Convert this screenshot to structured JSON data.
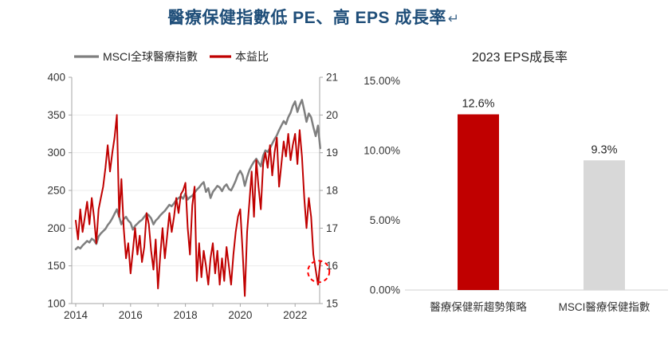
{
  "title": {
    "text": "醫療保健指數低 PE、高 EPS 成長率",
    "return_mark": "↵",
    "color": "#1F4E79"
  },
  "colors": {
    "msci_line": "#7F7F7F",
    "pe_line": "#C00000",
    "grid": "#EBEBEB",
    "axis": "#A6A6A6",
    "tick_text": "#333333",
    "label_text": "#262626",
    "annotation": "#FF0000",
    "bar_red": "#C00000",
    "bar_gray": "#D8D8D8",
    "baseline": "#D9D9D9"
  },
  "chart_data": [
    {
      "type": "line",
      "title": "",
      "legend_position": "top",
      "grid": true,
      "x_axis": {
        "start_year": 2014,
        "points_per_year": 12,
        "tick_labels": [
          "2014",
          "2016",
          "2018",
          "2020",
          "2022"
        ],
        "tick_values": [
          2014,
          2016,
          2018,
          2020,
          2022
        ],
        "minor_tick_step_years": 1
      },
      "left_axis": {
        "min": 100,
        "max": 400,
        "ticks": [
          400,
          350,
          300,
          250,
          200,
          150,
          100
        ]
      },
      "right_axis": {
        "min": 15,
        "max": 21,
        "ticks": [
          21,
          20,
          19,
          18,
          17,
          16,
          15
        ]
      },
      "series": [
        {
          "name": "MSCI全球醫療指數",
          "axis": "left",
          "color": "#7F7F7F",
          "values": [
            172,
            175,
            173,
            177,
            180,
            183,
            181,
            186,
            184,
            179,
            189,
            193,
            196,
            199,
            204,
            208,
            213,
            219,
            225,
            215,
            205,
            212,
            215,
            210,
            207,
            198,
            203,
            206,
            209,
            211,
            215,
            219,
            217,
            213,
            205,
            210,
            213,
            217,
            220,
            223,
            227,
            231,
            229,
            233,
            237,
            240,
            242,
            239,
            246,
            238,
            241,
            243,
            247,
            251,
            254,
            258,
            261,
            248,
            253,
            240,
            248,
            252,
            256,
            254,
            249,
            255,
            258,
            252,
            250,
            256,
            263,
            271,
            276,
            270,
            256,
            268,
            277,
            283,
            288,
            292,
            287,
            282,
            296,
            303,
            301,
            306,
            312,
            318,
            323,
            330,
            336,
            342,
            338,
            347,
            353,
            362,
            368,
            354,
            363,
            370,
            356,
            341,
            352,
            347,
            334,
            322,
            336,
            306
          ]
        },
        {
          "name": "本益比",
          "axis": "right",
          "color": "#C00000",
          "values": [
            17.2,
            16.7,
            17.5,
            16.9,
            17.3,
            17.7,
            17.1,
            17.8,
            17.3,
            16.6,
            17.5,
            17.8,
            18.1,
            18.6,
            19.2,
            18.5,
            19.0,
            19.4,
            20.0,
            17.3,
            18.3,
            17.0,
            16.2,
            16.6,
            15.8,
            16.4,
            17.0,
            16.3,
            16.8,
            16.1,
            16.5,
            17.4,
            17.1,
            16.4,
            15.9,
            16.7,
            15.4,
            16.3,
            17.0,
            16.2,
            16.8,
            17.4,
            16.9,
            17.3,
            17.8,
            17.4,
            17.9,
            18.0,
            18.2,
            17.0,
            16.3,
            17.6,
            18.1,
            15.6,
            16.6,
            15.7,
            16.4,
            16.0,
            15.5,
            16.2,
            16.6,
            15.8,
            16.4,
            15.5,
            16.2,
            15.6,
            16.5,
            16.0,
            15.5,
            16.3,
            16.9,
            17.3,
            17.5,
            16.4,
            15.2,
            16.9,
            17.7,
            18.5,
            17.3,
            18.8,
            18.1,
            17.5,
            18.7,
            19.0,
            18.6,
            19.2,
            18.4,
            19.0,
            19.4,
            18.1,
            18.7,
            19.3,
            18.9,
            19.5,
            18.8,
            19.2,
            19.5,
            18.7,
            19.6,
            18.9,
            17.8,
            17.0,
            17.8,
            17.3,
            16.3,
            15.9,
            15.5,
            16.1
          ]
        }
      ],
      "annotation": {
        "shape": "dashed-circle",
        "color": "#FF0000",
        "series": "本益比",
        "point_index": 107,
        "circled_value": 16.1
      }
    },
    {
      "type": "bar",
      "title": "2023 EPS成長率",
      "categories": [
        "醫療保健新趨勢策略",
        "MSCI醫療保健指數"
      ],
      "values": [
        12.6,
        9.3
      ],
      "value_labels": [
        "12.6%",
        "9.3%"
      ],
      "bar_colors": [
        "#C00000",
        "#D8D8D8"
      ],
      "ylim": [
        0,
        15
      ],
      "y_axis": {
        "tick_labels": [
          "15.00%",
          "10.00%",
          "5.00%",
          "0.00%"
        ],
        "tick_values": [
          15,
          10,
          5,
          0
        ]
      },
      "grid": false,
      "legend_position": "none"
    }
  ]
}
